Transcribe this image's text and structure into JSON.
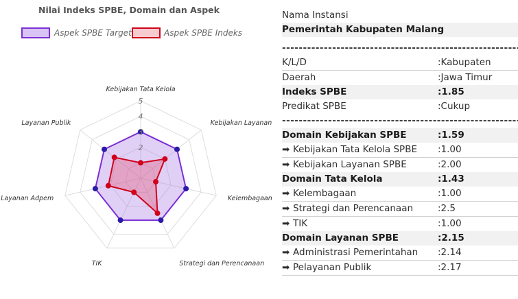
{
  "chart_data": {
    "type": "radar",
    "title": "Nilai Indeks SPBE, Domain dan Aspek",
    "axes": [
      "Kebijakan Tata Kelola",
      "Kebijakan Layanan",
      "Kelembagaan",
      "Strategi dan Perencanaan",
      "TIK",
      "Layanan Adpem",
      "Layanan Publik"
    ],
    "r_ticks": [
      "2",
      "3",
      "4",
      "5"
    ],
    "r_range": [
      0,
      5
    ],
    "series": [
      {
        "name": "Aspek SPBE Target",
        "values": [
          3,
          3,
          3,
          3,
          3,
          3,
          3
        ],
        "color": "#7b2fd6",
        "fill": "rgba(170,120,230,0.35)",
        "marker": "#2a1aa8"
      },
      {
        "name": "Aspek SPBE Indeks",
        "values": [
          1.0,
          2.0,
          1.0,
          2.5,
          1.0,
          2.14,
          2.17
        ],
        "color": "#d0021b",
        "fill": "rgba(230,80,110,0.35)",
        "marker": "#d0021b"
      }
    ],
    "legend_position": "top"
  },
  "info": {
    "nama_instansi_label": "Nama Instansi",
    "nama_instansi": "Pemerintah Kabupaten Malang",
    "separator": "----------------------------------------------------------------",
    "kld_label": "K/L/D",
    "kld_value": ":Kabupaten",
    "daerah_label": "Daerah",
    "daerah_value": ":Jawa Timur",
    "indeks_label": "Indeks SPBE",
    "indeks_value": ":1.85",
    "predikat_label": "Predikat SPBE",
    "predikat_value": ":Cukup",
    "arrow": "➡",
    "domains": [
      {
        "label": "Domain Kebijakan SPBE",
        "value": ":1.59",
        "aspects": [
          {
            "label": "Kebijakan Tata Kelola SPBE",
            "value": ":1.00"
          },
          {
            "label": "Kebijakan Layanan SPBE",
            "value": ":2.00"
          }
        ]
      },
      {
        "label": "Domain Tata Kelola",
        "value": ":1.43",
        "aspects": [
          {
            "label": "Kelembagaan",
            "value": ":1.00"
          },
          {
            "label": "Strategi dan Perencanaan",
            "value": ":2.5"
          },
          {
            "label": "TIK",
            "value": ":1.00"
          }
        ]
      },
      {
        "label": "Domain Layanan SPBE",
        "value": ":2.15",
        "aspects": [
          {
            "label": "Administrasi Pemerintahan",
            "value": ":2.14"
          },
          {
            "label": "Pelayanan Publik",
            "value": ":2.17"
          }
        ]
      }
    ]
  }
}
